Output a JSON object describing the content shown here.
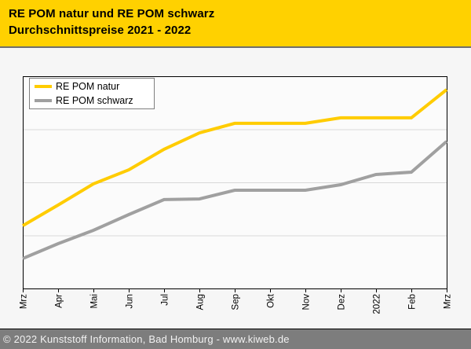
{
  "header": {
    "title_line1": "RE POM natur und RE POM schwarz",
    "title_line2": "Durchschnittspreise 2021 - 2022"
  },
  "colors": {
    "header_bg": "#FFD100",
    "natur_line": "#FFCC00",
    "schwarz_line": "#A0A0A0",
    "plot_bg": "#FBFBFB",
    "page_bg": "#F6F6F6",
    "gridline": "#D8D8D8",
    "axis": "#000000",
    "footer_bg": "#7D7D7D",
    "footer_text": "#F2F2F2"
  },
  "legend": {
    "items": [
      {
        "label": "RE POM natur"
      },
      {
        "label": "RE POM schwarz"
      }
    ]
  },
  "chart_data": {
    "type": "line",
    "title": "RE POM natur und RE POM schwarz — Durchschnittspreise 2021 - 2022",
    "categories": [
      "Mrz",
      "Apr",
      "Mai",
      "Jun",
      "Jul",
      "Aug",
      "Sep",
      "Okt",
      "Nov",
      "Dez",
      "2022",
      "Feb",
      "Mrz"
    ],
    "x_period": "Mrz 2021 - Mrz 2022",
    "series": [
      {
        "name": "RE POM natur",
        "color": "#FFCC00",
        "values_pct": [
          29.6,
          39.3,
          49.3,
          55.9,
          65.6,
          73.3,
          77.8,
          77.8,
          77.8,
          80.4,
          80.4,
          80.4,
          93.7
        ]
      },
      {
        "name": "RE POM schwarz",
        "color": "#A0A0A0",
        "values_pct": [
          14.1,
          21.1,
          27.4,
          34.8,
          41.9,
          42.2,
          46.3,
          46.3,
          46.3,
          48.9,
          53.7,
          54.8,
          69.3
        ]
      }
    ],
    "xlabel": "",
    "ylabel": "",
    "y_axis": {
      "tick_labels_visible": false,
      "gridline_divisions": 4
    },
    "legend_position": "top-left inside plot",
    "grid": "horizontal only",
    "note": "Source chart shows no numeric y-axis labels; series values are expressed as percent of plot height (0 = plot bottom, 100 = plot top), both lines rising from Mrz 2021 to Mrz 2022."
  },
  "footer": {
    "copyright": "© 2022 Kunststoff Information, Bad Homburg - www.kiweb.de"
  }
}
